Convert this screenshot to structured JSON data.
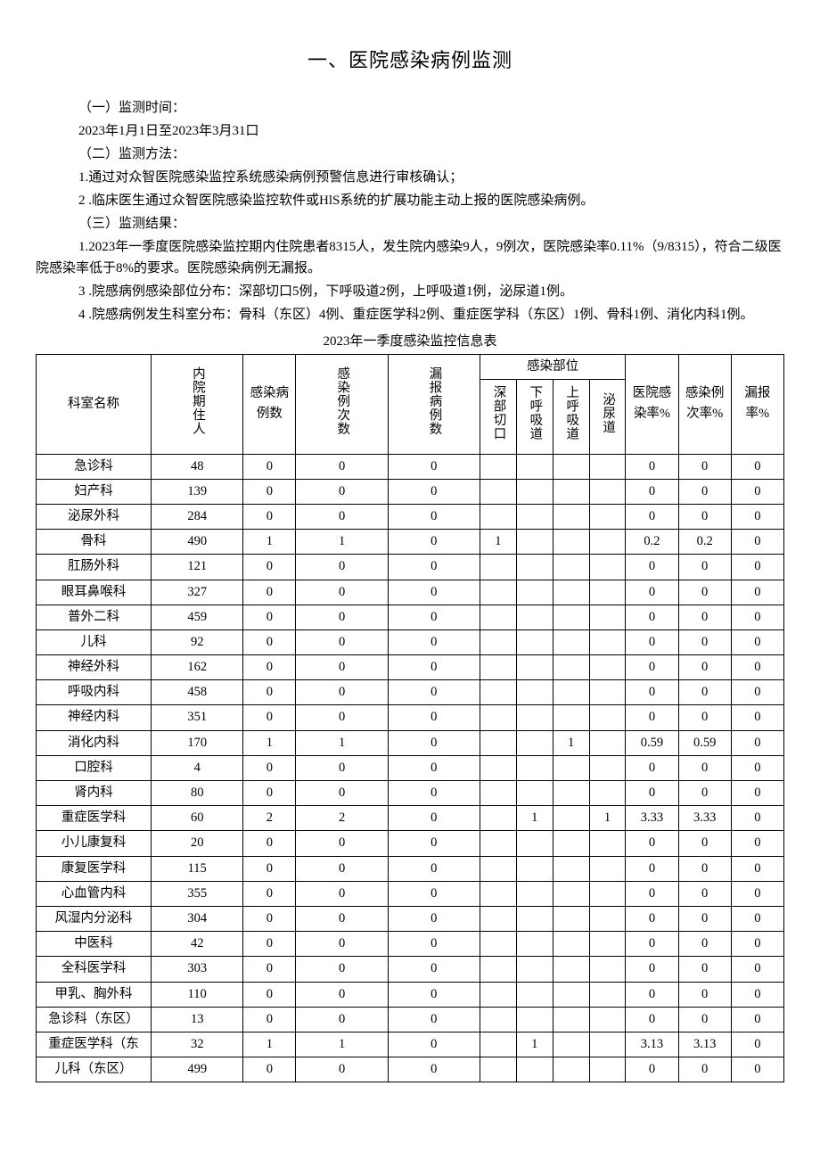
{
  "title": "一、医院感染病例监测",
  "sections": {
    "s1_heading": "（一）监测时间：",
    "s1_line": "2023年1月1日至2023年3月31口",
    "s2_heading": "（二）监测方法：",
    "s2_item1": "1.通过对众智医院感染监控系统感染病例预警信息进行审核确认；",
    "s2_item2": "2 .临床医生通过众智医院感染监控软件或HlS系统的扩展功能主动上报的医院感染病例。",
    "s3_heading": "（三）监测结果：",
    "s3_item1": "1.2023年一季度医院感染监控期内住院患者8315人，发生院内感染9人，9例次，医院感染率0.11%（9/8315），符合二级医院感染率低于8%的要求。医院感染病例无漏报。",
    "s3_item2": "3 .院感病例感染部位分布：深部切口5例，下呼吸道2例，上呼吸道1例，泌尿道1例。",
    "s3_item3": "4 .院感病例发生科室分布：骨科（东区）4例、重症医学科2例、重症医学科（东区）1例、骨科1例、消化内科1例。"
  },
  "table": {
    "caption": "2023年一季度感染监控信息表",
    "headers": {
      "dept": "科室名称",
      "inpatients": "内院期住人",
      "cases": "感染病例数",
      "times": "感染例次数",
      "missed": "漏报病例数",
      "site_group": "感染部位",
      "site_deep": "深部切口",
      "site_lower": "下呼吸道",
      "site_upper": "上呼吸道",
      "site_urinary": "泌尿道",
      "rate_infection": "医院感染率%",
      "rate_cases": "感染例次率%",
      "rate_missed": "漏报率%"
    },
    "rows": [
      {
        "dept": "急诊科",
        "inpat": "48",
        "cases": "0",
        "times": "0",
        "missed": "0",
        "deep": "",
        "lower": "",
        "upper": "",
        "urinary": "",
        "r1": "0",
        "r2": "0",
        "r3": "0"
      },
      {
        "dept": "妇产科",
        "inpat": "139",
        "cases": "0",
        "times": "0",
        "missed": "0",
        "deep": "",
        "lower": "",
        "upper": "",
        "urinary": "",
        "r1": "0",
        "r2": "0",
        "r3": "0"
      },
      {
        "dept": "泌尿外科",
        "inpat": "284",
        "cases": "0",
        "times": "0",
        "missed": "0",
        "deep": "",
        "lower": "",
        "upper": "",
        "urinary": "",
        "r1": "0",
        "r2": "0",
        "r3": "0"
      },
      {
        "dept": "骨科",
        "inpat": "490",
        "cases": "1",
        "times": "1",
        "missed": "0",
        "deep": "1",
        "lower": "",
        "upper": "",
        "urinary": "",
        "r1": "0.2",
        "r2": "0.2",
        "r3": "0"
      },
      {
        "dept": "肛肠外科",
        "inpat": "121",
        "cases": "0",
        "times": "0",
        "missed": "0",
        "deep": "",
        "lower": "",
        "upper": "",
        "urinary": "",
        "r1": "0",
        "r2": "0",
        "r3": "0"
      },
      {
        "dept": "眼耳鼻喉科",
        "inpat": "327",
        "cases": "0",
        "times": "0",
        "missed": "0",
        "deep": "",
        "lower": "",
        "upper": "",
        "urinary": "",
        "r1": "0",
        "r2": "0",
        "r3": "0"
      },
      {
        "dept": "普外二科",
        "inpat": "459",
        "cases": "0",
        "times": "0",
        "missed": "0",
        "deep": "",
        "lower": "",
        "upper": "",
        "urinary": "",
        "r1": "0",
        "r2": "0",
        "r3": "0"
      },
      {
        "dept": "儿科",
        "inpat": "92",
        "cases": "0",
        "times": "0",
        "missed": "0",
        "deep": "",
        "lower": "",
        "upper": "",
        "urinary": "",
        "r1": "0",
        "r2": "0",
        "r3": "0"
      },
      {
        "dept": "神经外科",
        "inpat": "162",
        "cases": "0",
        "times": "0",
        "missed": "0",
        "deep": "",
        "lower": "",
        "upper": "",
        "urinary": "",
        "r1": "0",
        "r2": "0",
        "r3": "0"
      },
      {
        "dept": "呼吸内科",
        "inpat": "458",
        "cases": "0",
        "times": "0",
        "missed": "0",
        "deep": "",
        "lower": "",
        "upper": "",
        "urinary": "",
        "r1": "0",
        "r2": "0",
        "r3": "0"
      },
      {
        "dept": "神经内科",
        "inpat": "351",
        "cases": "0",
        "times": "0",
        "missed": "0",
        "deep": "",
        "lower": "",
        "upper": "",
        "urinary": "",
        "r1": "0",
        "r2": "0",
        "r3": "0"
      },
      {
        "dept": "消化内科",
        "inpat": "170",
        "cases": "1",
        "times": "1",
        "missed": "0",
        "deep": "",
        "lower": "",
        "upper": "1",
        "urinary": "",
        "r1": "0.59",
        "r2": "0.59",
        "r3": "0"
      },
      {
        "dept": "口腔科",
        "inpat": "4",
        "cases": "0",
        "times": "0",
        "missed": "0",
        "deep": "",
        "lower": "",
        "upper": "",
        "urinary": "",
        "r1": "0",
        "r2": "0",
        "r3": "0"
      },
      {
        "dept": "肾内科",
        "inpat": "80",
        "cases": "0",
        "times": "0",
        "missed": "0",
        "deep": "",
        "lower": "",
        "upper": "",
        "urinary": "",
        "r1": "0",
        "r2": "0",
        "r3": "0"
      },
      {
        "dept": "重症医学科",
        "inpat": "60",
        "cases": "2",
        "times": "2",
        "missed": "0",
        "deep": "",
        "lower": "1",
        "upper": "",
        "urinary": "1",
        "r1": "3.33",
        "r2": "3.33",
        "r3": "0"
      },
      {
        "dept": "小儿康复科",
        "inpat": "20",
        "cases": "0",
        "times": "0",
        "missed": "0",
        "deep": "",
        "lower": "",
        "upper": "",
        "urinary": "",
        "r1": "0",
        "r2": "0",
        "r3": "0"
      },
      {
        "dept": "康复医学科",
        "inpat": "115",
        "cases": "0",
        "times": "0",
        "missed": "0",
        "deep": "",
        "lower": "",
        "upper": "",
        "urinary": "",
        "r1": "0",
        "r2": "0",
        "r3": "0"
      },
      {
        "dept": "心血管内科",
        "inpat": "355",
        "cases": "0",
        "times": "0",
        "missed": "0",
        "deep": "",
        "lower": "",
        "upper": "",
        "urinary": "",
        "r1": "0",
        "r2": "0",
        "r3": "0"
      },
      {
        "dept": "风湿内分泌科",
        "inpat": "304",
        "cases": "0",
        "times": "0",
        "missed": "0",
        "deep": "",
        "lower": "",
        "upper": "",
        "urinary": "",
        "r1": "0",
        "r2": "0",
        "r3": "0"
      },
      {
        "dept": "中医科",
        "inpat": "42",
        "cases": "0",
        "times": "0",
        "missed": "0",
        "deep": "",
        "lower": "",
        "upper": "",
        "urinary": "",
        "r1": "0",
        "r2": "0",
        "r3": "0"
      },
      {
        "dept": "全科医学科",
        "inpat": "303",
        "cases": "0",
        "times": "0",
        "missed": "0",
        "deep": "",
        "lower": "",
        "upper": "",
        "urinary": "",
        "r1": "0",
        "r2": "0",
        "r3": "0"
      },
      {
        "dept": "甲乳、胸外科",
        "inpat": "110",
        "cases": "0",
        "times": "0",
        "missed": "0",
        "deep": "",
        "lower": "",
        "upper": "",
        "urinary": "",
        "r1": "0",
        "r2": "0",
        "r3": "0"
      },
      {
        "dept": "急诊科（东区）",
        "inpat": "13",
        "cases": "0",
        "times": "0",
        "missed": "0",
        "deep": "",
        "lower": "",
        "upper": "",
        "urinary": "",
        "r1": "0",
        "r2": "0",
        "r3": "0"
      },
      {
        "dept": "重症医学科（东",
        "inpat": "32",
        "cases": "1",
        "times": "1",
        "missed": "0",
        "deep": "",
        "lower": "1",
        "upper": "",
        "urinary": "",
        "r1": "3.13",
        "r2": "3.13",
        "r3": "0"
      },
      {
        "dept": "儿科（东区）",
        "inpat": "499",
        "cases": "0",
        "times": "0",
        "missed": "0",
        "deep": "",
        "lower": "",
        "upper": "",
        "urinary": "",
        "r1": "0",
        "r2": "0",
        "r3": "0"
      }
    ]
  },
  "style": {
    "text_color": "#000000",
    "background_color": "#ffffff",
    "border_color": "#000000",
    "title_fontsize": 22,
    "body_fontsize": 15,
    "table_fontsize": 14.5
  }
}
